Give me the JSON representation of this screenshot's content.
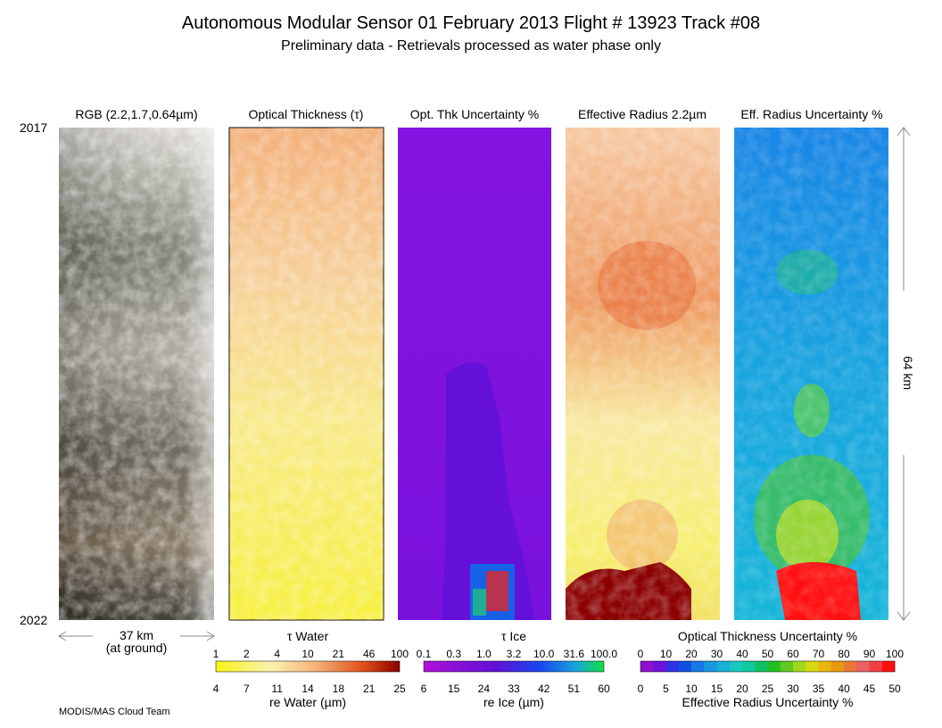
{
  "header": {
    "title": "Autonomous Modular Sensor  01 February 2013  Flight # 13923 Track #08",
    "subtitle": "Preliminary data - Retrievals processed as water phase only"
  },
  "panels": [
    {
      "title": "RGB (2.2,1.7,0.64µm)"
    },
    {
      "title": "Optical Thickness (τ)"
    },
    {
      "title": "Opt. Thk Uncertainty %"
    },
    {
      "title": "Effective Radius 2.2µm"
    },
    {
      "title": "Eff. Radius Uncertainty %"
    }
  ],
  "time_axis": {
    "start": "2017",
    "end": "2022"
  },
  "scale": {
    "width": "37 km",
    "width_note": "(at ground)",
    "length": "64 km"
  },
  "colorbars": [
    {
      "top_title": "τ Water",
      "top_ticks": [
        "1",
        "2",
        "4",
        "10",
        "21",
        "46",
        "100"
      ],
      "bottom_ticks": [
        "4",
        "7",
        "11",
        "14",
        "18",
        "21",
        "25"
      ],
      "bottom_title": "re Water (µm)"
    },
    {
      "top_title": "τ Ice",
      "top_ticks": [
        "0.1",
        "0.3",
        "1.0",
        "3.2",
        "10.0",
        "31.6",
        "100.0"
      ],
      "bottom_ticks": [
        "6",
        "15",
        "24",
        "33",
        "42",
        "51",
        "60"
      ],
      "bottom_title": "re Ice (µm)"
    },
    {
      "top_title": "Optical Thickness Uncertainty %",
      "top_ticks": [
        "0",
        "10",
        "20",
        "30",
        "40",
        "50",
        "60",
        "70",
        "80",
        "90",
        "100"
      ],
      "bottom_ticks": [
        "0",
        "5",
        "10",
        "15",
        "20",
        "25",
        "30",
        "35",
        "40",
        "45",
        "50"
      ],
      "bottom_title": "Effective Radius Uncertainty %"
    }
  ],
  "footer": {
    "credit": "MODIS/MAS Cloud Team"
  }
}
